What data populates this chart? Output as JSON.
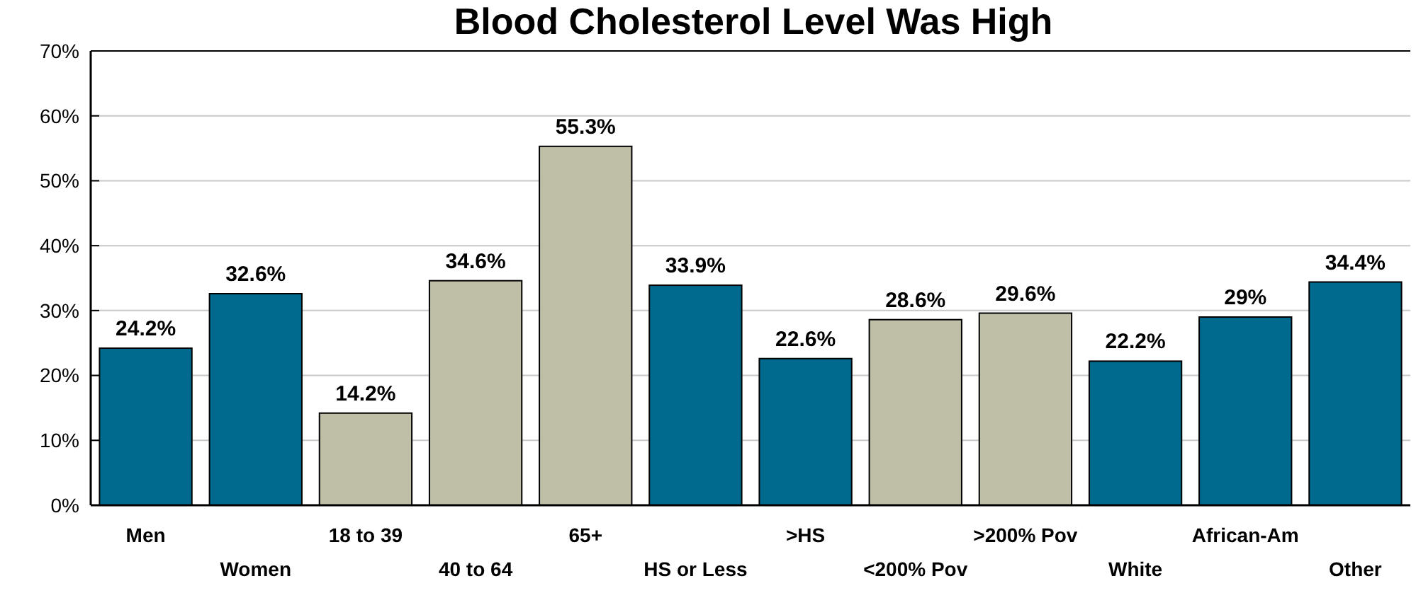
{
  "chart_data": {
    "type": "bar",
    "title": "Blood Cholesterol Level Was High",
    "categories": [
      "Men",
      "Women",
      "18 to 39",
      "40 to 64",
      "65+",
      "HS or Less",
      ">HS",
      "<200% Pov",
      ">200% Pov",
      "White",
      "African-Am",
      "Other"
    ],
    "values": [
      24.2,
      32.6,
      14.2,
      34.6,
      55.3,
      33.9,
      22.6,
      28.6,
      29.6,
      22.2,
      29,
      34.4
    ],
    "colors": [
      "#006a8e",
      "#006a8e",
      "#bfbfa8",
      "#bfbfa8",
      "#bfbfa8",
      "#006a8e",
      "#006a8e",
      "#bfbfa8",
      "#bfbfa8",
      "#006a8e",
      "#006a8e",
      "#006a8e"
    ],
    "value_labels": [
      "24.2%",
      "32.6%",
      "14.2%",
      "34.6%",
      "55.3%",
      "33.9%",
      "22.6%",
      "28.6%",
      "29.6%",
      "22.2%",
      "29%",
      "34.4%"
    ],
    "ylim": [
      0,
      70
    ],
    "yticks": [
      {
        "value": 0,
        "label": "0%"
      },
      {
        "value": 10,
        "label": "10%"
      },
      {
        "value": 20,
        "label": "20%"
      },
      {
        "value": 30,
        "label": "30%"
      },
      {
        "value": 40,
        "label": "40%"
      },
      {
        "value": 50,
        "label": "50%"
      },
      {
        "value": 60,
        "label": "60%"
      },
      {
        "value": 70,
        "label": "70%"
      }
    ],
    "grid": "y"
  }
}
